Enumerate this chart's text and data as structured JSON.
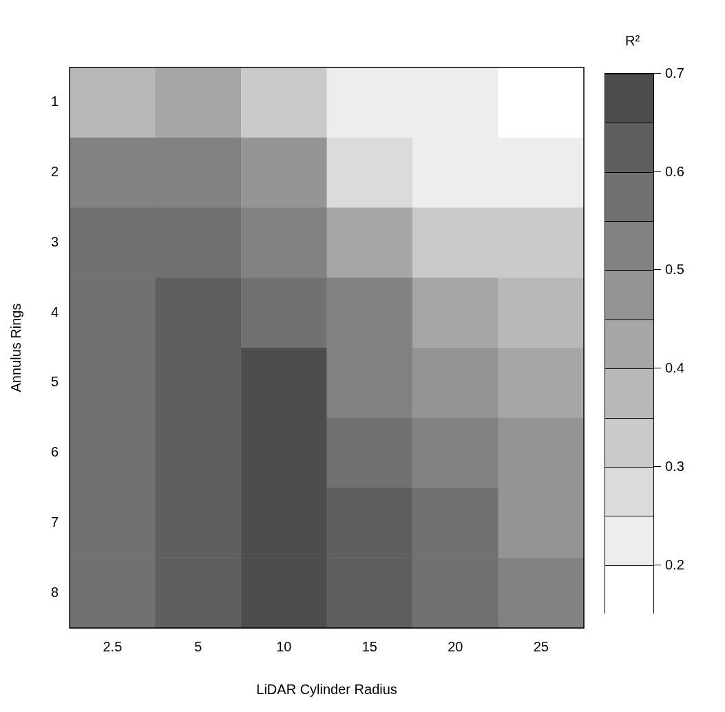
{
  "chart_data": {
    "type": "heatmap",
    "xlabel": "LiDAR Cylinder Radius",
    "ylabel": "Annulus Rings",
    "clabel": "R²",
    "categories": [
      "2.5",
      "5",
      "10",
      "15",
      "20",
      "25"
    ],
    "y_categories": [
      "1",
      "2",
      "3",
      "4",
      "5",
      "6",
      "7",
      "8"
    ],
    "cells": [
      [
        0.38,
        0.42,
        0.31,
        0.24,
        0.21,
        0.18
      ],
      [
        0.5,
        0.53,
        0.45,
        0.29,
        0.23,
        0.24
      ],
      [
        0.55,
        0.59,
        0.53,
        0.42,
        0.33,
        0.32
      ],
      [
        0.57,
        0.6,
        0.58,
        0.5,
        0.4,
        0.36
      ],
      [
        0.58,
        0.6,
        0.66,
        0.54,
        0.47,
        0.4
      ],
      [
        0.58,
        0.61,
        0.67,
        0.58,
        0.5,
        0.45
      ],
      [
        0.57,
        0.6,
        0.67,
        0.6,
        0.55,
        0.48
      ],
      [
        0.57,
        0.6,
        0.67,
        0.61,
        0.58,
        0.52
      ]
    ],
    "clim": [
      0.15,
      0.7
    ],
    "cticks": [
      0.2,
      0.3,
      0.4,
      0.5,
      0.6,
      0.7
    ]
  }
}
